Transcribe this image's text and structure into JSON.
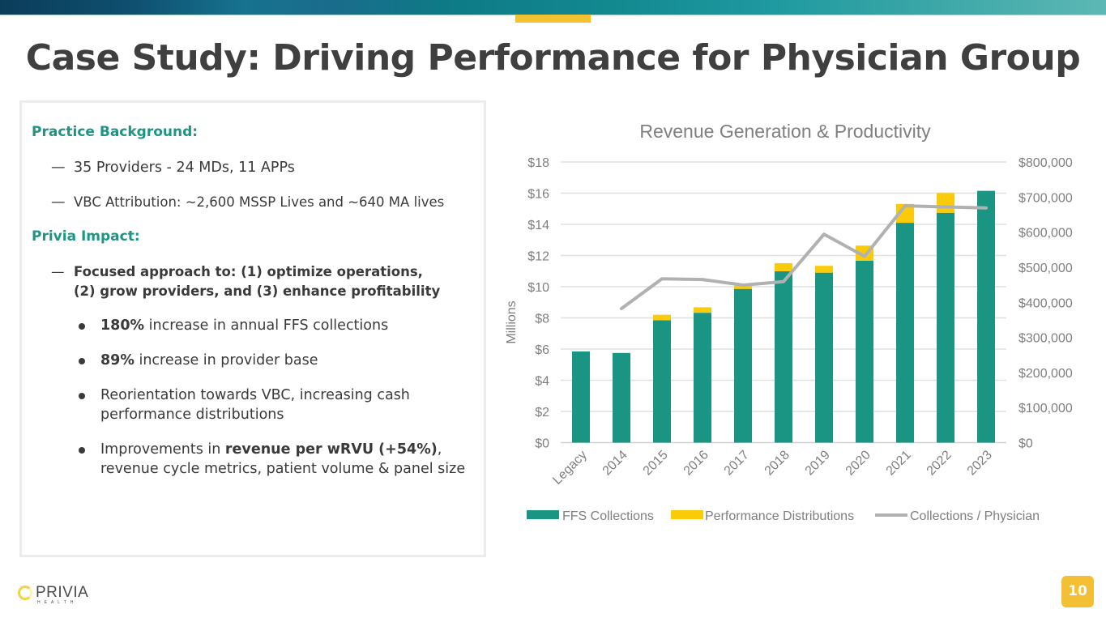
{
  "header": {
    "title": "Case Study:  Driving Performance for Physician Group"
  },
  "panel": {
    "background_heading": "Practice Background:",
    "background_items": [
      "35 Providers - 24 MDs, 11 APPs",
      "VBC Attribution:  ~2,600 MSSP Lives and ~640 MA lives"
    ],
    "impact_heading": "Privia Impact:",
    "impact_item_line1": "Focused approach to:  (1) optimize operations,",
    "impact_item_line2": "(2) grow providers, and (3) enhance profitability",
    "bullets": [
      {
        "bold": "180%",
        "text": " increase in annual FFS collections"
      },
      {
        "bold": "89%",
        "text": " increase in provider base"
      },
      {
        "pre": "Reorientation towards VBC, increasing cash performance distributions"
      },
      {
        "pre": "Improvements in ",
        "bold": "revenue per wRVU (+54%)",
        "text": ", revenue cycle metrics, patient volume & panel size"
      }
    ],
    "dash_glyph": "—"
  },
  "footer": {
    "logo_text": "PRIVIA",
    "logo_subtext": "HEALTH",
    "page_number": "10"
  },
  "colors": {
    "ffs": "#1a9584",
    "performance": "#fbcb0a",
    "line": "#b1b1b1",
    "heading": "#1e9484",
    "accent": "#f2c232"
  },
  "chart_data": {
    "type": "bar",
    "stacked": true,
    "title": "Revenue Generation & Productivity",
    "categories": [
      "Legacy",
      "2014",
      "2015",
      "2016",
      "2017",
      "2018",
      "2019",
      "2020",
      "2021",
      "2022",
      "2023"
    ],
    "series": [
      {
        "name": "FFS Collections",
        "type": "bar",
        "axis": "left",
        "values": [
          5.85,
          5.75,
          7.85,
          8.33,
          9.86,
          10.99,
          10.9,
          11.67,
          14.1,
          14.74,
          16.15
        ]
      },
      {
        "name": "Performance Distributions",
        "type": "bar",
        "axis": "left",
        "values": [
          0,
          0,
          0.35,
          0.35,
          0.21,
          0.52,
          0.44,
          0.97,
          1.21,
          1.27,
          0
        ]
      },
      {
        "name": "Collections / Physician",
        "type": "line",
        "axis": "right",
        "values": [
          null,
          382000,
          467000,
          465000,
          449000,
          459000,
          594000,
          531000,
          675000,
          672000,
          669000
        ]
      }
    ],
    "ylabel": "Millions",
    "ylim": [
      0,
      18
    ],
    "yticks": [
      "$0",
      "$2",
      "$4",
      "$6",
      "$8",
      "$10",
      "$12",
      "$14",
      "$16",
      "$18"
    ],
    "y2lim": [
      0,
      800000
    ],
    "y2ticks": [
      "$0",
      "$100,000",
      "$200,000",
      "$300,000",
      "$400,000",
      "$500,000",
      "$600,000",
      "$700,000",
      "$800,000"
    ],
    "grid": true,
    "legend": "bottom"
  }
}
